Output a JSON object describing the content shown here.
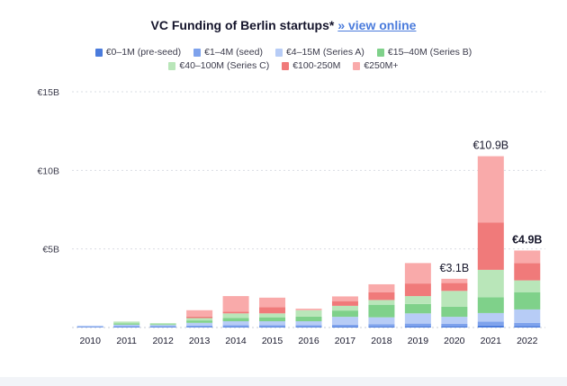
{
  "header": {
    "title": "VC Funding of Berlin startups*",
    "link_label": "» view online"
  },
  "chart_data": {
    "type": "bar",
    "stacked": true,
    "categories": [
      "2010",
      "2011",
      "2012",
      "2013",
      "2014",
      "2015",
      "2016",
      "2017",
      "2018",
      "2019",
      "2020",
      "2021",
      "2022"
    ],
    "ylim": [
      0,
      15
    ],
    "yticks": [
      5,
      10,
      15
    ],
    "ytick_labels": [
      "€5B",
      "€10B",
      "€15B"
    ],
    "grid": true,
    "legend_position": "top",
    "series": [
      {
        "name": "€0–1M (pre-seed)",
        "color": "#4a7bdc",
        "values": [
          0.02,
          0.03,
          0.03,
          0.04,
          0.05,
          0.05,
          0.05,
          0.06,
          0.07,
          0.08,
          0.08,
          0.12,
          0.1
        ]
      },
      {
        "name": "€1–4M (seed)",
        "color": "#7ea2ec",
        "values": [
          0.05,
          0.07,
          0.06,
          0.08,
          0.1,
          0.1,
          0.1,
          0.12,
          0.13,
          0.17,
          0.15,
          0.25,
          0.2
        ]
      },
      {
        "name": "€4–15M (Series A)",
        "color": "#b7ccf6",
        "values": [
          0.05,
          0.08,
          0.07,
          0.18,
          0.25,
          0.25,
          0.25,
          0.5,
          0.45,
          0.65,
          0.45,
          0.55,
          0.85
        ]
      },
      {
        "name": "€15–40M (Series B)",
        "color": "#7fd18a",
        "values": [
          0.0,
          0.08,
          0.05,
          0.15,
          0.2,
          0.25,
          0.3,
          0.4,
          0.8,
          0.6,
          0.65,
          1.0,
          1.1
        ]
      },
      {
        "name": "€40–100M (Series C)",
        "color": "#b9e6b9",
        "values": [
          0.0,
          0.12,
          0.07,
          0.15,
          0.3,
          0.25,
          0.4,
          0.3,
          0.3,
          0.5,
          1.0,
          1.75,
          0.75
        ]
      },
      {
        "name": "€100-250M",
        "color": "#f07a7a",
        "values": [
          0.0,
          0.0,
          0.0,
          0.1,
          0.1,
          0.4,
          0.0,
          0.3,
          0.5,
          0.8,
          0.5,
          3.0,
          1.1
        ]
      },
      {
        "name": "€250M+",
        "color": "#f9aaaa",
        "values": [
          0.0,
          0.0,
          0.0,
          0.4,
          1.0,
          0.6,
          0.1,
          0.3,
          0.5,
          1.3,
          0.27,
          4.23,
          0.8
        ]
      }
    ],
    "annotations": [
      {
        "category": "2020",
        "label": "€3.1B",
        "bold": false
      },
      {
        "category": "2021",
        "label": "€10.9B",
        "bold": false
      },
      {
        "category": "2022",
        "label": "€4.9B",
        "bold": true
      }
    ]
  }
}
